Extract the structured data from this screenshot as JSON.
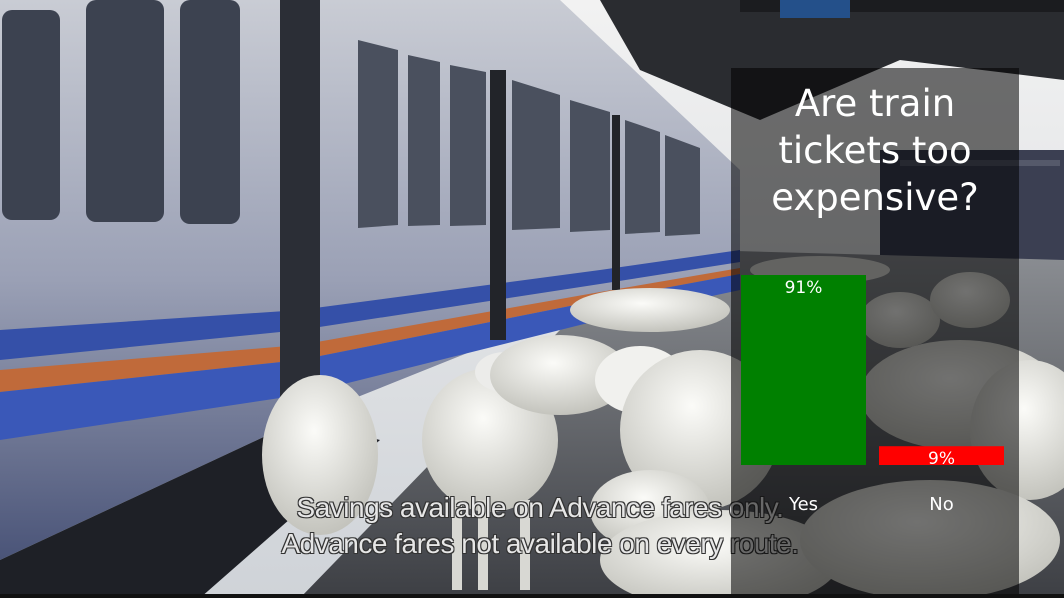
{
  "caption": {
    "line1": "Savings available on Advance fares only.",
    "line2": "Advance fares not available on every route."
  },
  "colors": {
    "yes": "#008000",
    "no": "#ff0000",
    "label": "#ffffff",
    "panel": "rgba(0,0,0,0.55)"
  },
  "chart_data": {
    "type": "bar",
    "title": "Are train tickets too expensive?",
    "categories": [
      "Yes",
      "No"
    ],
    "values": [
      91,
      9
    ],
    "value_labels": [
      "91%",
      "9%"
    ],
    "ylim": [
      0,
      100
    ],
    "grid": false,
    "legend": "none"
  }
}
